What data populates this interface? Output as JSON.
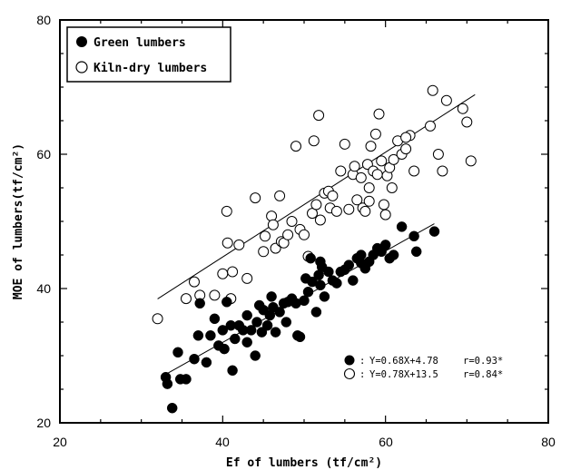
{
  "chart_data": {
    "type": "scatter",
    "xlabel": "Ef of lumbers (tf/cm²)",
    "ylabel": "MOE of lumbers(tf/cm²)",
    "xlim": [
      20,
      80
    ],
    "ylim": [
      20,
      80
    ],
    "xticks": [
      "20",
      "40",
      "60",
      "80"
    ],
    "yticks": [
      "20",
      "40",
      "60",
      "80"
    ],
    "grid": false,
    "legend_position": "top-left",
    "series": [
      {
        "name": "Green lumbers",
        "marker": "filled-circle",
        "color": "#000000",
        "fit": {
          "slope": 0.68,
          "intercept": 4.78,
          "r": "0.93*",
          "label": "Y=0.68X+4.78",
          "r_label": "r=0.93*",
          "x_range": [
            33,
            66
          ]
        },
        "points": [
          [
            33.0,
            26.8
          ],
          [
            33.2,
            25.8
          ],
          [
            33.8,
            22.2
          ],
          [
            34.5,
            30.5
          ],
          [
            34.8,
            26.5
          ],
          [
            35.5,
            26.5
          ],
          [
            36.5,
            29.5
          ],
          [
            37.2,
            37.8
          ],
          [
            38.0,
            29.0
          ],
          [
            38.5,
            33.0
          ],
          [
            39.0,
            35.5
          ],
          [
            39.5,
            31.5
          ],
          [
            40.0,
            33.8
          ],
          [
            40.2,
            31.0
          ],
          [
            40.5,
            38.0
          ],
          [
            41.0,
            34.5
          ],
          [
            41.2,
            27.8
          ],
          [
            41.5,
            32.5
          ],
          [
            42.0,
            34.5
          ],
          [
            42.5,
            33.8
          ],
          [
            43.0,
            36.0
          ],
          [
            43.5,
            33.8
          ],
          [
            44.0,
            30.0
          ],
          [
            44.2,
            35.0
          ],
          [
            44.5,
            37.5
          ],
          [
            44.8,
            33.5
          ],
          [
            45.0,
            36.8
          ],
          [
            45.5,
            34.5
          ],
          [
            45.8,
            36.0
          ],
          [
            46.0,
            38.8
          ],
          [
            46.2,
            37.2
          ],
          [
            46.5,
            33.5
          ],
          [
            47.0,
            36.5
          ],
          [
            47.5,
            37.8
          ],
          [
            47.8,
            35.0
          ],
          [
            48.0,
            38.0
          ],
          [
            48.5,
            38.5
          ],
          [
            49.0,
            37.8
          ],
          [
            49.2,
            33.0
          ],
          [
            49.5,
            32.8
          ],
          [
            50.0,
            38.2
          ],
          [
            50.2,
            41.5
          ],
          [
            50.5,
            39.5
          ],
          [
            50.8,
            44.5
          ],
          [
            51.0,
            41.0
          ],
          [
            51.5,
            36.5
          ],
          [
            51.8,
            42.0
          ],
          [
            52.0,
            40.5
          ],
          [
            52.2,
            43.2
          ],
          [
            52.5,
            38.8
          ],
          [
            53.0,
            42.5
          ],
          [
            53.5,
            41.2
          ],
          [
            54.0,
            40.8
          ],
          [
            54.5,
            42.5
          ],
          [
            55.0,
            42.8
          ],
          [
            55.5,
            43.5
          ],
          [
            56.0,
            41.2
          ],
          [
            56.5,
            44.5
          ],
          [
            57.0,
            45.0
          ],
          [
            57.5,
            43.0
          ],
          [
            58.0,
            44.0
          ],
          [
            58.5,
            45.0
          ],
          [
            59.0,
            46.0
          ],
          [
            59.5,
            45.5
          ],
          [
            60.0,
            46.5
          ],
          [
            61.0,
            45.0
          ],
          [
            62.0,
            49.2
          ],
          [
            63.5,
            47.8
          ],
          [
            63.8,
            45.5
          ],
          [
            66.0,
            48.5
          ],
          [
            37.0,
            33.0
          ],
          [
            43.0,
            32.0
          ],
          [
            52.0,
            44.0
          ],
          [
            57.0,
            43.8
          ],
          [
            60.5,
            44.5
          ]
        ]
      },
      {
        "name": "Kiln-dry lumbers",
        "marker": "open-circle",
        "color": "#000000",
        "fit": {
          "slope": 0.78,
          "intercept": 13.5,
          "r": "0.84*",
          "label": "Y=0.78X+13.5",
          "r_label": "r=0.84*",
          "x_range": [
            32,
            71
          ]
        },
        "points": [
          [
            32.0,
            35.5
          ],
          [
            35.5,
            38.5
          ],
          [
            36.5,
            41.0
          ],
          [
            37.2,
            39.0
          ],
          [
            39.0,
            39.0
          ],
          [
            40.0,
            42.2
          ],
          [
            40.5,
            51.5
          ],
          [
            40.6,
            46.8
          ],
          [
            41.0,
            38.5
          ],
          [
            41.2,
            42.5
          ],
          [
            42.0,
            46.5
          ],
          [
            43.0,
            41.5
          ],
          [
            44.0,
            53.5
          ],
          [
            45.0,
            45.5
          ],
          [
            45.2,
            47.8
          ],
          [
            46.0,
            50.8
          ],
          [
            46.2,
            49.5
          ],
          [
            46.5,
            46.0
          ],
          [
            47.0,
            53.8
          ],
          [
            47.2,
            47.0
          ],
          [
            47.5,
            46.8
          ],
          [
            48.0,
            48.0
          ],
          [
            48.5,
            50.0
          ],
          [
            49.0,
            61.2
          ],
          [
            49.5,
            48.8
          ],
          [
            50.0,
            48.0
          ],
          [
            50.5,
            44.8
          ],
          [
            51.0,
            51.2
          ],
          [
            51.2,
            62.0
          ],
          [
            51.5,
            52.5
          ],
          [
            51.8,
            65.8
          ],
          [
            52.0,
            50.2
          ],
          [
            52.5,
            54.2
          ],
          [
            53.0,
            54.5
          ],
          [
            53.2,
            52.0
          ],
          [
            53.5,
            53.8
          ],
          [
            54.0,
            51.5
          ],
          [
            55.0,
            61.5
          ],
          [
            55.5,
            51.8
          ],
          [
            56.0,
            57.0
          ],
          [
            56.2,
            58.2
          ],
          [
            56.5,
            53.2
          ],
          [
            57.0,
            56.5
          ],
          [
            57.2,
            52.0
          ],
          [
            57.5,
            51.5
          ],
          [
            57.8,
            58.5
          ],
          [
            58.0,
            53.0
          ],
          [
            58.2,
            61.2
          ],
          [
            58.5,
            57.5
          ],
          [
            58.8,
            63.0
          ],
          [
            59.0,
            57.0
          ],
          [
            59.2,
            66.0
          ],
          [
            59.5,
            59.0
          ],
          [
            59.8,
            52.5
          ],
          [
            60.0,
            51.0
          ],
          [
            60.2,
            56.8
          ],
          [
            60.5,
            58.0
          ],
          [
            60.8,
            55.0
          ],
          [
            61.0,
            59.2
          ],
          [
            61.5,
            62.0
          ],
          [
            62.0,
            60.0
          ],
          [
            62.5,
            60.8
          ],
          [
            63.0,
            62.8
          ],
          [
            63.5,
            57.5
          ],
          [
            65.5,
            64.2
          ],
          [
            65.8,
            69.5
          ],
          [
            66.5,
            60.0
          ],
          [
            67.0,
            57.5
          ],
          [
            67.5,
            68.0
          ],
          [
            69.5,
            66.8
          ],
          [
            70.0,
            64.8
          ],
          [
            70.5,
            59.0
          ],
          [
            54.5,
            57.5
          ],
          [
            58.0,
            55.0
          ],
          [
            62.5,
            62.5
          ]
        ]
      }
    ]
  },
  "legend": {
    "green_label": "Green lumbers",
    "kiln_label": "Kiln-dry lumbers"
  },
  "equations": {
    "green": {
      "prefix": ":",
      "eq": "Y=0.68X+4.78",
      "r": "r=0.93*"
    },
    "kiln": {
      "prefix": ":",
      "eq": "Y=0.78X+13.5",
      "r": "r=0.84*"
    }
  }
}
